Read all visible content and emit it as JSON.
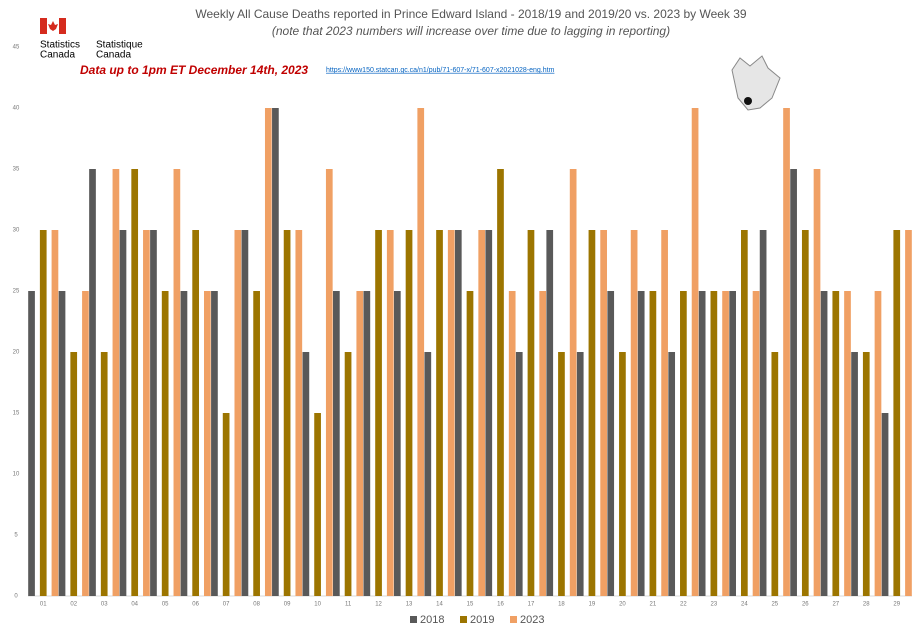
{
  "header": {
    "logo_en": [
      "Statistics",
      "Canada"
    ],
    "logo_fr": [
      "Statistique",
      "Canada"
    ],
    "note": "Data up to 1pm ET December 14th, 2023",
    "url": "https://www150.statcan.gc.ca/n1/pub/71-607-x/71-607-x2021028-eng.htm"
  },
  "chart_data": {
    "type": "bar",
    "title": "Weekly All Cause Deaths reported in Prince Edward Island - 2018/19 and 2019/20 vs. 2023 by Week 39",
    "subtitle": "(note that 2023 numbers will increase over time due to lagging in reporting)",
    "categories": [
      "01",
      "02",
      "03",
      "04",
      "05",
      "06",
      "07",
      "08",
      "09",
      "10",
      "11",
      "12",
      "13",
      "14",
      "15",
      "16",
      "17",
      "18",
      "19",
      "20",
      "21",
      "22",
      "23",
      "24",
      "25",
      "26",
      "27",
      "28",
      "29"
    ],
    "series": [
      {
        "name": "2018",
        "color": "#595959",
        "values": [
          25,
          25,
          35,
          30,
          30,
          25,
          25,
          30,
          40,
          20,
          25,
          25,
          25,
          20,
          30,
          30,
          20,
          30,
          20,
          25,
          25,
          20,
          25,
          25,
          30,
          35,
          25,
          20,
          15
        ]
      },
      {
        "name": "2019",
        "color": "#9c7500",
        "values": [
          30,
          20,
          20,
          35,
          25,
          30,
          15,
          25,
          30,
          15,
          20,
          30,
          30,
          30,
          25,
          35,
          30,
          20,
          30,
          20,
          25,
          25,
          25,
          30,
          20,
          30,
          25,
          20,
          30
        ]
      },
      {
        "name": "2023",
        "color": "#f0a064",
        "values": [
          30,
          25,
          35,
          30,
          35,
          25,
          30,
          40,
          30,
          35,
          25,
          30,
          40,
          30,
          30,
          25,
          25,
          35,
          30,
          30,
          30,
          40,
          25,
          25,
          40,
          35,
          25,
          25,
          30
        ]
      }
    ],
    "ylim": [
      0,
      45
    ],
    "yticks": [
      0,
      5,
      10,
      15,
      20,
      25,
      30,
      35,
      40,
      45
    ],
    "grid": false,
    "legend": "bottom"
  }
}
